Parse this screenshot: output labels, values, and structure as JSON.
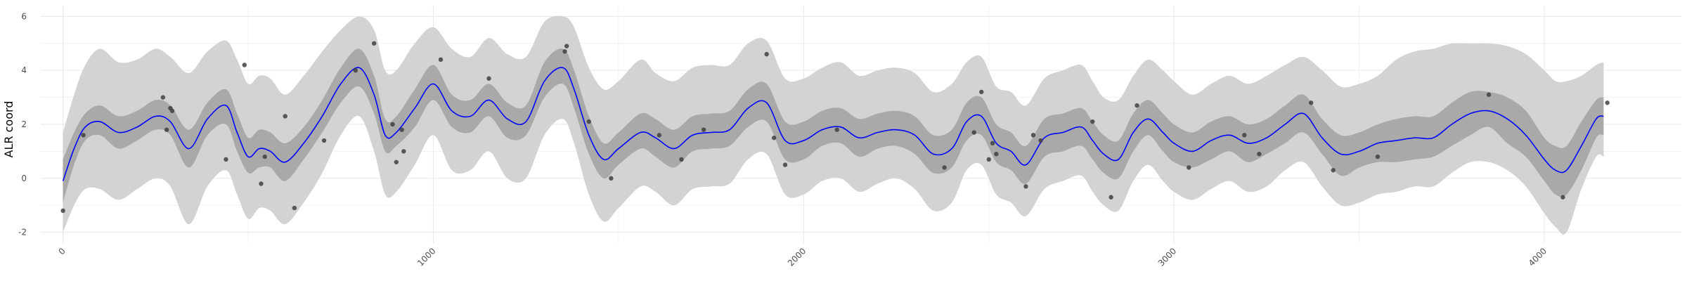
{
  "chart_data": {
    "type": "line",
    "title": "",
    "xlabel": "",
    "ylabel": "ALR coord",
    "xlim": [
      -60,
      4370
    ],
    "ylim": [
      -2.4,
      6.4
    ],
    "x_ticks": [
      0,
      1000,
      2000,
      3000,
      4000
    ],
    "x_tick_labels": [
      "0",
      "1000",
      "2000",
      "3000",
      "4000"
    ],
    "y_ticks": [
      -2,
      0,
      2,
      4,
      6
    ],
    "y_tick_labels": [
      "-2",
      "0",
      "2",
      "4",
      "6"
    ],
    "grid": true,
    "legend": "none",
    "colors": {
      "mean_line": "#0000ff",
      "inner_band": "#a9a9a9",
      "outer_band": "#d3d3d3",
      "points": "#404040",
      "grid": "#ebebeb"
    },
    "series": [
      {
        "kind": "mean",
        "x": [
          0,
          30,
          60,
          100,
          150,
          200,
          250,
          290,
          340,
          390,
          440,
          470,
          500,
          530,
          560,
          600,
          650,
          700,
          750,
          800,
          840,
          870,
          900,
          950,
          1000,
          1050,
          1100,
          1150,
          1200,
          1250,
          1300,
          1350,
          1380,
          1420,
          1460,
          1500,
          1560,
          1600,
          1650,
          1700,
          1750,
          1800,
          1850,
          1900,
          1950,
          2000,
          2050,
          2100,
          2150,
          2200,
          2250,
          2300,
          2350,
          2400,
          2440,
          2480,
          2520,
          2560,
          2600,
          2650,
          2700,
          2750,
          2780,
          2810,
          2850,
          2890,
          2930,
          2970,
          3000,
          3050,
          3100,
          3150,
          3200,
          3250,
          3300,
          3350,
          3400,
          3450,
          3500,
          3550,
          3600,
          3650,
          3700,
          3750,
          3800,
          3850,
          3900,
          3950,
          4000,
          4030,
          4060,
          4100,
          4140,
          4160
        ],
        "y": [
          -0.1,
          1.1,
          1.9,
          2.1,
          1.7,
          1.9,
          2.3,
          2.1,
          1.1,
          2.2,
          2.7,
          1.7,
          0.8,
          1.1,
          1.0,
          0.6,
          1.3,
          2.3,
          3.5,
          4.1,
          3.1,
          1.6,
          1.7,
          2.6,
          3.5,
          2.5,
          2.3,
          2.9,
          2.2,
          2.1,
          3.6,
          4.1,
          3.3,
          1.6,
          0.7,
          1.1,
          1.7,
          1.5,
          1.1,
          1.6,
          1.7,
          1.8,
          2.6,
          2.8,
          1.4,
          1.4,
          1.8,
          1.9,
          1.5,
          1.7,
          1.8,
          1.6,
          0.9,
          1.1,
          2.1,
          2.3,
          1.3,
          1.0,
          0.5,
          1.5,
          1.7,
          1.9,
          1.4,
          0.9,
          0.7,
          1.7,
          2.2,
          1.7,
          1.3,
          1.0,
          1.4,
          1.6,
          1.3,
          1.5,
          2.0,
          2.4,
          1.5,
          0.9,
          1.0,
          1.3,
          1.4,
          1.5,
          1.5,
          2.0,
          2.4,
          2.5,
          2.2,
          1.6,
          0.7,
          0.3,
          0.3,
          1.2,
          2.2,
          2.3
        ]
      },
      {
        "kind": "inner_band",
        "x": [
          0,
          30,
          60,
          100,
          150,
          200,
          250,
          290,
          340,
          390,
          440,
          470,
          500,
          530,
          560,
          600,
          650,
          700,
          750,
          800,
          840,
          870,
          900,
          950,
          1000,
          1050,
          1100,
          1150,
          1200,
          1250,
          1300,
          1350,
          1380,
          1420,
          1460,
          1500,
          1560,
          1600,
          1650,
          1700,
          1750,
          1800,
          1850,
          1900,
          1950,
          2000,
          2050,
          2100,
          2150,
          2200,
          2250,
          2300,
          2350,
          2400,
          2440,
          2480,
          2520,
          2560,
          2600,
          2650,
          2700,
          2750,
          2780,
          2810,
          2850,
          2890,
          2930,
          2970,
          3000,
          3050,
          3100,
          3150,
          3200,
          3250,
          3300,
          3350,
          3400,
          3450,
          3500,
          3550,
          3600,
          3650,
          3700,
          3750,
          3800,
          3850,
          3900,
          3950,
          4000,
          4030,
          4060,
          4100,
          4140,
          4160
        ],
        "lower": [
          -0.9,
          0.5,
          1.4,
          1.6,
          1.1,
          1.4,
          1.8,
          1.6,
          0.4,
          1.6,
          2.0,
          1.0,
          0.2,
          0.4,
          0.4,
          -0.1,
          0.7,
          1.7,
          2.8,
          3.4,
          2.4,
          1.0,
          1.2,
          1.9,
          2.9,
          1.9,
          1.7,
          2.3,
          1.5,
          1.6,
          3.0,
          3.5,
          2.6,
          0.9,
          0.0,
          0.5,
          1.1,
          0.8,
          0.4,
          1.0,
          1.1,
          1.2,
          1.9,
          2.1,
          0.7,
          0.7,
          1.2,
          1.3,
          0.8,
          1.1,
          1.2,
          0.9,
          0.2,
          0.4,
          1.4,
          1.6,
          0.6,
          0.3,
          -0.2,
          0.8,
          1.0,
          1.2,
          0.7,
          0.2,
          0.0,
          1.0,
          1.6,
          1.0,
          0.6,
          0.4,
          0.7,
          1.0,
          0.6,
          0.9,
          1.3,
          1.7,
          0.9,
          0.1,
          0.4,
          0.6,
          0.6,
          0.7,
          0.8,
          1.2,
          1.6,
          1.9,
          1.3,
          0.8,
          -0.1,
          -0.6,
          -0.6,
          0.3,
          1.5,
          1.6
        ],
        "upper": [
          0.7,
          1.7,
          2.4,
          2.7,
          2.3,
          2.5,
          2.9,
          2.7,
          1.8,
          2.8,
          3.3,
          2.4,
          1.5,
          1.8,
          1.7,
          1.3,
          1.9,
          2.9,
          4.1,
          4.8,
          3.8,
          2.2,
          2.3,
          3.3,
          4.2,
          3.1,
          2.9,
          3.5,
          2.8,
          2.7,
          4.3,
          4.8,
          4.0,
          2.3,
          1.3,
          1.7,
          2.4,
          2.2,
          1.8,
          2.3,
          2.4,
          2.5,
          3.3,
          3.5,
          2.1,
          2.1,
          2.5,
          2.6,
          2.2,
          2.4,
          2.5,
          2.3,
          1.6,
          1.8,
          2.8,
          3.0,
          2.0,
          1.7,
          1.2,
          2.2,
          2.4,
          2.6,
          2.1,
          1.6,
          1.4,
          2.4,
          2.9,
          2.4,
          2.0,
          1.7,
          2.1,
          2.3,
          2.0,
          2.2,
          2.7,
          3.1,
          2.2,
          1.6,
          1.7,
          2.0,
          2.2,
          2.3,
          2.3,
          2.8,
          3.2,
          3.2,
          3.0,
          2.5,
          1.5,
          1.2,
          1.2,
          2.1,
          2.9,
          3.0
        ]
      },
      {
        "kind": "outer_band",
        "x": [
          0,
          30,
          60,
          100,
          150,
          200,
          250,
          290,
          340,
          390,
          440,
          470,
          500,
          530,
          560,
          600,
          650,
          700,
          750,
          800,
          840,
          870,
          900,
          950,
          1000,
          1050,
          1100,
          1150,
          1200,
          1250,
          1300,
          1350,
          1380,
          1420,
          1460,
          1500,
          1560,
          1600,
          1650,
          1700,
          1750,
          1800,
          1850,
          1900,
          1950,
          2000,
          2050,
          2100,
          2150,
          2200,
          2250,
          2300,
          2350,
          2400,
          2440,
          2480,
          2520,
          2560,
          2600,
          2650,
          2700,
          2750,
          2780,
          2810,
          2850,
          2890,
          2930,
          2970,
          3000,
          3050,
          3100,
          3150,
          3200,
          3250,
          3300,
          3350,
          3400,
          3450,
          3500,
          3550,
          3600,
          3650,
          3700,
          3750,
          3800,
          3850,
          3900,
          3950,
          4000,
          4030,
          4060,
          4100,
          4140,
          4160
        ],
        "lower": [
          -2.0,
          -1.0,
          -0.4,
          -0.4,
          -0.8,
          -0.4,
          0.0,
          -0.3,
          -1.7,
          -0.3,
          0.3,
          -0.6,
          -1.5,
          -1.1,
          -1.2,
          -1.7,
          -0.9,
          0.2,
          1.6,
          2.3,
          1.0,
          -0.6,
          -0.5,
          0.5,
          1.6,
          0.3,
          0.3,
          1.0,
          0.0,
          0.0,
          1.6,
          2.2,
          1.3,
          -0.6,
          -1.6,
          -1.1,
          -0.3,
          -0.5,
          -1.0,
          -0.4,
          -0.3,
          -0.2,
          0.7,
          0.9,
          -0.6,
          -0.6,
          -0.1,
          0.0,
          -0.5,
          -0.2,
          0.0,
          -0.4,
          -1.2,
          -0.9,
          0.3,
          0.5,
          -0.6,
          -0.9,
          -1.4,
          -0.4,
          -0.1,
          0.1,
          -0.5,
          -1.0,
          -1.2,
          -0.1,
          0.5,
          -0.1,
          -0.5,
          -0.8,
          -0.4,
          -0.1,
          -0.5,
          -0.3,
          0.3,
          0.6,
          -0.3,
          -1.0,
          -0.9,
          -0.6,
          -0.5,
          -0.3,
          -0.3,
          0.2,
          0.6,
          0.6,
          0.3,
          -0.3,
          -1.3,
          -1.8,
          -2.0,
          -0.4,
          0.8,
          0.8
        ],
        "upper": [
          1.7,
          3.1,
          4.2,
          4.8,
          4.3,
          4.4,
          4.8,
          4.5,
          3.9,
          4.7,
          5.1,
          4.4,
          3.5,
          3.8,
          3.7,
          3.1,
          3.8,
          4.7,
          5.5,
          6.0,
          5.5,
          4.0,
          4.0,
          5.0,
          5.6,
          4.8,
          4.5,
          5.2,
          4.6,
          4.5,
          5.8,
          6.0,
          5.6,
          4.1,
          3.3,
          3.6,
          4.4,
          3.9,
          3.6,
          4.1,
          4.2,
          4.2,
          5.0,
          5.1,
          3.7,
          3.7,
          4.1,
          4.3,
          3.8,
          4.0,
          4.1,
          3.9,
          3.2,
          3.5,
          4.3,
          4.5,
          3.4,
          3.2,
          2.7,
          3.7,
          4.0,
          4.2,
          3.6,
          3.0,
          2.9,
          3.8,
          4.4,
          4.0,
          3.6,
          3.1,
          3.5,
          3.8,
          3.5,
          3.8,
          4.2,
          4.5,
          4.0,
          3.4,
          3.5,
          3.8,
          4.4,
          4.7,
          4.8,
          5.0,
          5.0,
          5.0,
          4.9,
          4.6,
          4.0,
          3.6,
          3.6,
          3.8,
          4.2,
          4.3
        ]
      },
      {
        "kind": "observations",
        "x": [
          0,
          55,
          270,
          280,
          290,
          295,
          440,
          490,
          535,
          545,
          600,
          625,
          705,
          790,
          840,
          890,
          900,
          915,
          920,
          1020,
          1150,
          1355,
          1360,
          1420,
          1480,
          1610,
          1670,
          1730,
          1900,
          1920,
          1950,
          2090,
          2380,
          2460,
          2480,
          2500,
          2510,
          2520,
          2600,
          2620,
          2640,
          2780,
          2830,
          2900,
          3040,
          3190,
          3230,
          3370,
          3430,
          3550,
          3850,
          4050,
          4170
        ],
        "y": [
          -1.2,
          1.6,
          3.0,
          1.8,
          2.6,
          2.5,
          0.7,
          4.2,
          -0.2,
          0.8,
          2.3,
          -1.1,
          1.4,
          4.0,
          5.0,
          2.0,
          0.6,
          1.8,
          1.0,
          4.4,
          3.7,
          4.7,
          4.9,
          2.1,
          0.0,
          1.6,
          0.7,
          1.8,
          4.6,
          1.5,
          0.5,
          1.8,
          0.4,
          1.7,
          3.2,
          0.7,
          1.3,
          0.9,
          -0.3,
          1.6,
          1.4,
          2.1,
          -0.7,
          2.7,
          0.4,
          1.6,
          0.9,
          2.8,
          0.3,
          0.8,
          3.1,
          -0.7,
          2.8
        ]
      }
    ]
  }
}
